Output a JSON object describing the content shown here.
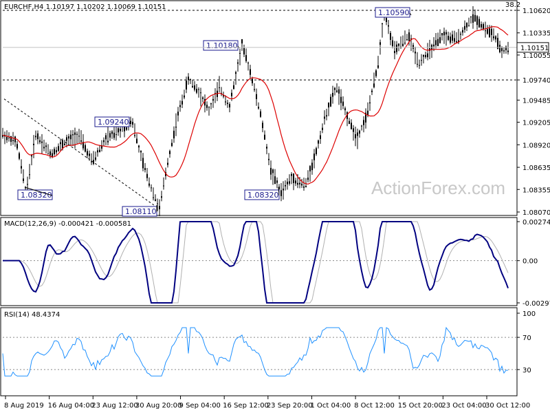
{
  "chart_data": [
    {
      "type": "candlestick",
      "title": "EURCHF,H4  1.10197 1.10202 1.10069 1.10151",
      "symbol": "EURCHF",
      "timeframe": "H4",
      "ohlc_last": {
        "open": 1.10197,
        "high": 1.10202,
        "low": 1.10069,
        "close": 1.10151
      },
      "ylim": [
        1.0807,
        1.0625
      ],
      "y_ticks": [
        "1.10620",
        "1.10335",
        "1.10055",
        "1.09740",
        "1.09485",
        "1.09205",
        "1.08920",
        "1.08635",
        "1.08355",
        "1.08070"
      ],
      "x_ticks": [
        "8 Aug 2019",
        "16 Aug 04:00",
        "23 Aug 12:00",
        "30 Aug 20:00",
        "9 Sep 04:00",
        "16 Sep 12:00",
        "23 Sep 20:00",
        "1 Oct 04:00",
        "8 Oct 12:00",
        "15 Oct 20:00",
        "23 Oct 04:00",
        "30 Oct 12:00"
      ],
      "current_price": "1.10151",
      "corner_label": "38.2",
      "horizontal_levels": [
        {
          "value": 1.1062,
          "label": "1.10620",
          "style": "dashed"
        },
        {
          "value": 1.0974,
          "label": "1.09740",
          "style": "dashed"
        }
      ],
      "callouts": [
        {
          "label": "1.08320",
          "price": 1.0832,
          "position": "aug-low"
        },
        {
          "label": "1.09240",
          "price": 1.0924,
          "position": "aug-high"
        },
        {
          "label": "1.08110",
          "price": 1.0811,
          "position": "sep-low"
        },
        {
          "label": "1.10180",
          "price": 1.1018,
          "position": "sep-high"
        },
        {
          "label": "1.08320",
          "price": 1.0832,
          "position": "oct-low"
        },
        {
          "label": "1.10590",
          "price": 1.1059,
          "position": "oct-high"
        }
      ],
      "moving_average_color": "#dd0000",
      "candle_color": "#000000"
    },
    {
      "type": "line",
      "title": "MACD(12,26,9) -0.000421 -0.000581",
      "y_ticks": [
        "0.002747",
        "0.00",
        "-0.002972"
      ],
      "ylim": [
        -0.002972,
        0.002747
      ],
      "series": [
        {
          "color": "#000080"
        },
        {
          "color": "#b0b0b0"
        }
      ]
    },
    {
      "type": "line",
      "title": "RSI(14) 48.4374",
      "y_ticks": [
        "100",
        "70",
        "30",
        "0"
      ],
      "ylim": [
        0,
        100
      ],
      "levels": [
        70,
        30
      ],
      "series": [
        {
          "color": "#1e90ff"
        }
      ]
    }
  ],
  "watermark": "ActionForex.com"
}
